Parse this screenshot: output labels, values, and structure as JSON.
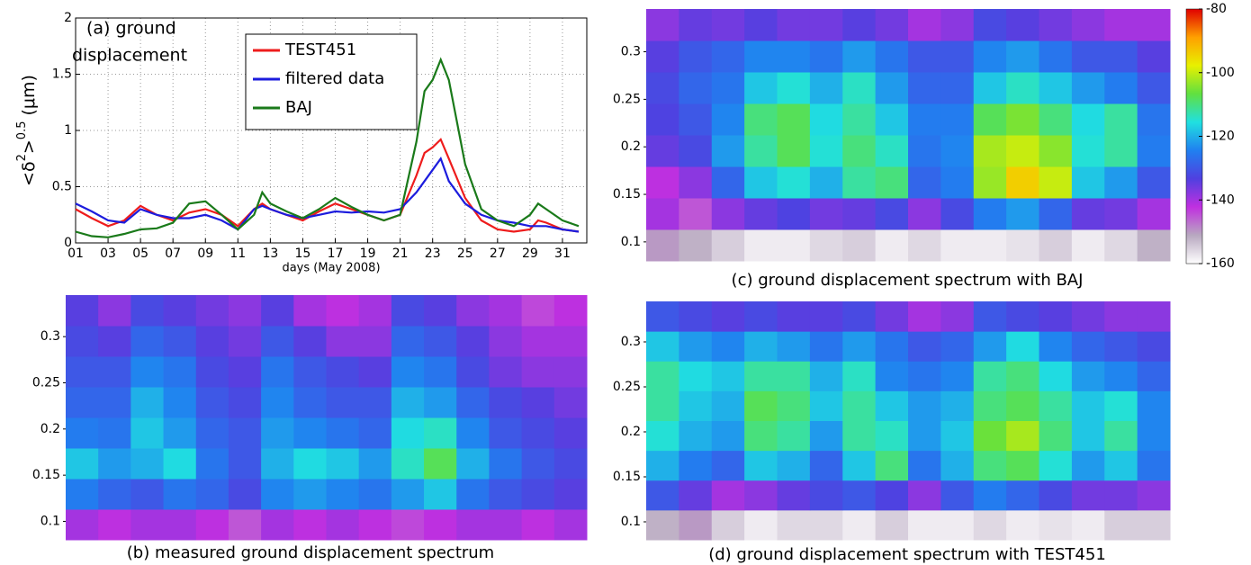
{
  "chart_data": [
    {
      "type": "line",
      "annotation": [
        "(a) ground",
        "displacement"
      ],
      "ylabel": [
        "<δ",
        "2",
        ">",
        "0.5",
        " (μm)"
      ],
      "xlabel": "days (May 2008)",
      "x": [
        1,
        2,
        3,
        4,
        5,
        6,
        7,
        8,
        9,
        10,
        11,
        12,
        12.5,
        13,
        14,
        15,
        16,
        17,
        18,
        19,
        20,
        21,
        22,
        22.5,
        23,
        23.5,
        24,
        25,
        26,
        27,
        28,
        29,
        29.5,
        30,
        31,
        32
      ],
      "xlim": [
        1,
        32.5
      ],
      "xticks": [
        {
          "value": 1,
          "label": "01"
        },
        {
          "value": 3,
          "label": "03"
        },
        {
          "value": 5,
          "label": "05"
        },
        {
          "value": 7,
          "label": "07"
        },
        {
          "value": 9,
          "label": "09"
        },
        {
          "value": 11,
          "label": "11"
        },
        {
          "value": 13,
          "label": "13"
        },
        {
          "value": 15,
          "label": "15"
        },
        {
          "value": 17,
          "label": "17"
        },
        {
          "value": 19,
          "label": "19"
        },
        {
          "value": 21,
          "label": "21"
        },
        {
          "value": 23,
          "label": "23"
        },
        {
          "value": 25,
          "label": "25"
        },
        {
          "value": 27,
          "label": "27"
        },
        {
          "value": 29,
          "label": "29"
        },
        {
          "value": 31,
          "label": "31"
        }
      ],
      "ylim": [
        0,
        2
      ],
      "yticks": [
        0,
        0.5,
        1,
        1.5,
        2
      ],
      "grid": true,
      "legend": "upper center",
      "series": [
        {
          "name": "TEST451",
          "color": "#ee1c1c",
          "values": [
            0.3,
            0.22,
            0.15,
            0.2,
            0.33,
            0.25,
            0.2,
            0.27,
            0.3,
            0.25,
            0.15,
            0.3,
            0.35,
            0.3,
            0.25,
            0.2,
            0.28,
            0.35,
            0.3,
            0.25,
            0.2,
            0.25,
            0.6,
            0.8,
            0.85,
            0.92,
            0.75,
            0.4,
            0.2,
            0.12,
            0.1,
            0.12,
            0.2,
            0.18,
            0.12,
            0.1
          ]
        },
        {
          "name": "filtered data",
          "color": "#1c1cdd",
          "values": [
            0.35,
            0.28,
            0.2,
            0.18,
            0.3,
            0.25,
            0.22,
            0.22,
            0.25,
            0.2,
            0.12,
            0.3,
            0.33,
            0.3,
            0.25,
            0.22,
            0.25,
            0.28,
            0.27,
            0.28,
            0.27,
            0.3,
            0.45,
            0.55,
            0.65,
            0.75,
            0.55,
            0.35,
            0.25,
            0.2,
            0.18,
            0.15,
            0.15,
            0.15,
            0.12,
            0.1
          ]
        },
        {
          "name": "BAJ",
          "color": "#1a7a1a",
          "values": [
            0.1,
            0.06,
            0.05,
            0.08,
            0.12,
            0.13,
            0.18,
            0.35,
            0.37,
            0.25,
            0.12,
            0.25,
            0.45,
            0.35,
            0.28,
            0.22,
            0.3,
            0.4,
            0.32,
            0.25,
            0.2,
            0.25,
            0.9,
            1.35,
            1.45,
            1.63,
            1.45,
            0.7,
            0.3,
            0.2,
            0.15,
            0.25,
            0.35,
            0.3,
            0.2,
            0.15
          ]
        }
      ]
    },
    {
      "type": "heatmap",
      "title": "(b) measured ground displacement spectrum",
      "ylim": [
        0.08,
        0.345
      ],
      "yticks": [
        0.1,
        0.15,
        0.2,
        0.25,
        0.3
      ],
      "z": [
        [
          -140,
          -142,
          -140,
          -140,
          -142,
          -145,
          -140,
          -142,
          -140,
          -142,
          -144,
          -142,
          -140,
          -140,
          -142,
          -140
        ],
        [
          -125,
          -128,
          -130,
          -126,
          -128,
          -132,
          -124,
          -122,
          -124,
          -126,
          -122,
          -118,
          -126,
          -130,
          -132,
          -134
        ],
        [
          -118,
          -122,
          -120,
          -116,
          -126,
          -130,
          -120,
          -116,
          -118,
          -122,
          -114,
          -108,
          -120,
          -126,
          -130,
          -132
        ],
        [
          -125,
          -126,
          -118,
          -122,
          -128,
          -130,
          -122,
          -124,
          -126,
          -128,
          -116,
          -114,
          -124,
          -130,
          -132,
          -134
        ],
        [
          -128,
          -128,
          -120,
          -124,
          -130,
          -132,
          -124,
          -128,
          -130,
          -130,
          -120,
          -122,
          -128,
          -132,
          -134,
          -136
        ],
        [
          -130,
          -130,
          -124,
          -126,
          -132,
          -134,
          -126,
          -130,
          -132,
          -134,
          -124,
          -126,
          -132,
          -136,
          -138,
          -138
        ],
        [
          -132,
          -134,
          -128,
          -130,
          -134,
          -136,
          -130,
          -134,
          -138,
          -138,
          -128,
          -130,
          -134,
          -138,
          -140,
          -140
        ],
        [
          -134,
          -138,
          -132,
          -134,
          -136,
          -138,
          -134,
          -140,
          -142,
          -140,
          -132,
          -134,
          -138,
          -140,
          -144,
          -142
        ]
      ]
    },
    {
      "type": "heatmap",
      "title": "(c) ground displacement spectrum with BAJ",
      "ylim": [
        0.08,
        0.345
      ],
      "yticks": [
        0.1,
        0.15,
        0.2,
        0.25,
        0.3
      ],
      "z": [
        [
          -150,
          -152,
          -155,
          -158,
          -158,
          -156,
          -155,
          -158,
          -156,
          -158,
          -158,
          -157,
          -155,
          -158,
          -156,
          -152
        ],
        [
          -140,
          -145,
          -138,
          -135,
          -133,
          -136,
          -135,
          -132,
          -138,
          -132,
          -125,
          -122,
          -128,
          -135,
          -136,
          -140
        ],
        [
          -142,
          -138,
          -128,
          -118,
          -115,
          -120,
          -112,
          -110,
          -128,
          -125,
          -103,
          -94,
          -100,
          -118,
          -122,
          -130
        ],
        [
          -135,
          -132,
          -122,
          -112,
          -108,
          -115,
          -110,
          -114,
          -126,
          -124,
          -102,
          -100,
          -104,
          -115,
          -112,
          -125
        ],
        [
          -133,
          -130,
          -124,
          -110,
          -108,
          -116,
          -112,
          -118,
          -125,
          -125,
          -108,
          -105,
          -110,
          -116,
          -112,
          -126
        ],
        [
          -132,
          -128,
          -126,
          -118,
          -115,
          -120,
          -114,
          -122,
          -128,
          -128,
          -118,
          -114,
          -118,
          -122,
          -125,
          -130
        ],
        [
          -134,
          -130,
          -128,
          -124,
          -124,
          -126,
          -122,
          -126,
          -130,
          -130,
          -124,
          -122,
          -126,
          -130,
          -130,
          -134
        ],
        [
          -138,
          -135,
          -136,
          -134,
          -136,
          -136,
          -134,
          -136,
          -140,
          -138,
          -132,
          -134,
          -136,
          -138,
          -140,
          -140
        ]
      ]
    },
    {
      "type": "heatmap",
      "title": "(d) ground displacement spectrum with TEST451",
      "ylim": [
        0.08,
        0.345
      ],
      "yticks": [
        0.1,
        0.15,
        0.2,
        0.25,
        0.3
      ],
      "z": [
        [
          -152,
          -150,
          -155,
          -158,
          -156,
          -156,
          -158,
          -155,
          -158,
          -158,
          -156,
          -158,
          -157,
          -158,
          -155,
          -155
        ],
        [
          -130,
          -135,
          -140,
          -138,
          -135,
          -132,
          -130,
          -133,
          -138,
          -130,
          -125,
          -128,
          -132,
          -136,
          -136,
          -138
        ],
        [
          -120,
          -125,
          -128,
          -118,
          -120,
          -128,
          -118,
          -110,
          -126,
          -120,
          -110,
          -108,
          -115,
          -122,
          -118,
          -126
        ],
        [
          -115,
          -120,
          -122,
          -110,
          -112,
          -122,
          -112,
          -114,
          -122,
          -118,
          -106,
          -102,
          -110,
          -118,
          -112,
          -124
        ],
        [
          -112,
          -118,
          -120,
          -108,
          -110,
          -118,
          -112,
          -118,
          -122,
          -120,
          -110,
          -108,
          -112,
          -118,
          -115,
          -124
        ],
        [
          -112,
          -116,
          -118,
          -112,
          -112,
          -120,
          -114,
          -124,
          -126,
          -124,
          -112,
          -110,
          -116,
          -122,
          -124,
          -128
        ],
        [
          -118,
          -122,
          -124,
          -120,
          -122,
          -126,
          -122,
          -126,
          -130,
          -128,
          -122,
          -116,
          -124,
          -128,
          -130,
          -132
        ],
        [
          -130,
          -132,
          -134,
          -132,
          -134,
          -134,
          -132,
          -136,
          -140,
          -138,
          -130,
          -132,
          -134,
          -136,
          -138,
          -138
        ]
      ]
    },
    {
      "type": "colorbar",
      "ylim": [
        -160,
        -80
      ],
      "yticks": [
        -160,
        -140,
        -120,
        -100,
        -80
      ],
      "colors": [
        "#ffffff",
        "#b8a8c0",
        "#c030e0",
        "#5040e0",
        "#2080f0",
        "#20e0e0",
        "#60e040",
        "#e8f000",
        "#ffa000",
        "#e00000"
      ]
    }
  ]
}
